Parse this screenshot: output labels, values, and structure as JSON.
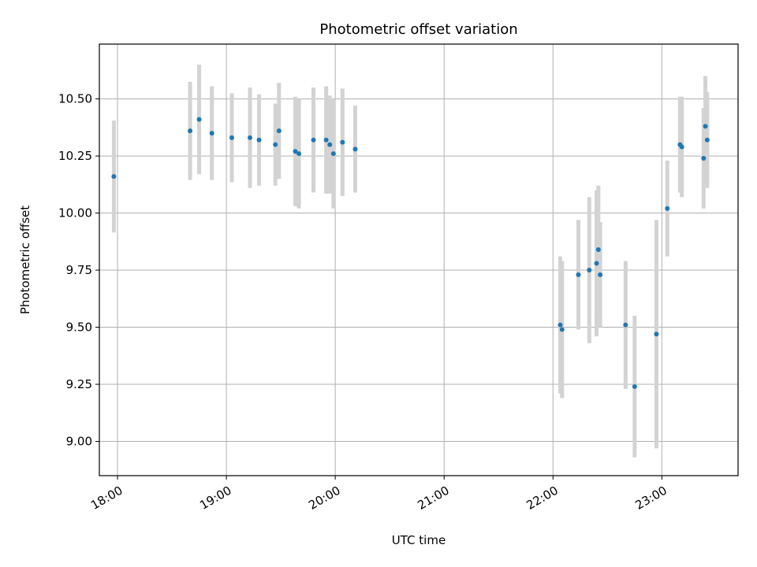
{
  "chart_data": {
    "type": "scatter",
    "title": "Photometric offset variation",
    "xlabel": "UTC time",
    "ylabel": "Photometric offset",
    "x_ticks": [
      "18:00",
      "19:00",
      "20:00",
      "21:00",
      "22:00",
      "23:00"
    ],
    "y_ticks": [
      "9.00",
      "9.25",
      "9.50",
      "9.75",
      "10.00",
      "10.25",
      "10.50"
    ],
    "xlim": [
      "17:50",
      "23:42"
    ],
    "ylim": [
      8.85,
      10.74
    ],
    "grid": true,
    "colors": {
      "points": "#1f77b4",
      "errorbars": "#d3d3d3",
      "grid": "#b0b0b0"
    },
    "series": [
      {
        "points": [
          {
            "x": "17:58",
            "y": 10.16,
            "err": 0.245
          },
          {
            "x": "18:40",
            "y": 10.36,
            "err": 0.215
          },
          {
            "x": "18:45",
            "y": 10.41,
            "err": 0.24
          },
          {
            "x": "18:52",
            "y": 10.35,
            "err": 0.205
          },
          {
            "x": "19:03",
            "y": 10.33,
            "err": 0.195
          },
          {
            "x": "19:13",
            "y": 10.33,
            "err": 0.22
          },
          {
            "x": "19:18",
            "y": 10.32,
            "err": 0.2
          },
          {
            "x": "19:27",
            "y": 10.3,
            "err": 0.18
          },
          {
            "x": "19:29",
            "y": 10.36,
            "err": 0.21
          },
          {
            "x": "19:38",
            "y": 10.27,
            "err": 0.24
          },
          {
            "x": "19:40",
            "y": 10.26,
            "err": 0.24
          },
          {
            "x": "19:48",
            "y": 10.32,
            "err": 0.23
          },
          {
            "x": "19:55",
            "y": 10.32,
            "err": 0.235
          },
          {
            "x": "19:57",
            "y": 10.3,
            "err": 0.215
          },
          {
            "x": "19:59",
            "y": 10.26,
            "err": 0.24
          },
          {
            "x": "20:04",
            "y": 10.31,
            "err": 0.235
          },
          {
            "x": "20:11",
            "y": 10.28,
            "err": 0.19
          },
          {
            "x": "22:04",
            "y": 9.51,
            "err": 0.3
          },
          {
            "x": "22:05",
            "y": 9.49,
            "err": 0.3
          },
          {
            "x": "22:14",
            "y": 9.73,
            "err": 0.24
          },
          {
            "x": "22:20",
            "y": 9.75,
            "err": 0.32
          },
          {
            "x": "22:24",
            "y": 9.78,
            "err": 0.32
          },
          {
            "x": "22:25",
            "y": 9.84,
            "err": 0.28
          },
          {
            "x": "22:26",
            "y": 9.73,
            "err": 0.23
          },
          {
            "x": "22:40",
            "y": 9.51,
            "err": 0.28
          },
          {
            "x": "22:45",
            "y": 9.24,
            "err": 0.31
          },
          {
            "x": "22:57",
            "y": 9.47,
            "err": 0.5
          },
          {
            "x": "23:03",
            "y": 10.02,
            "err": 0.21
          },
          {
            "x": "23:10",
            "y": 10.3,
            "err": 0.21
          },
          {
            "x": "23:11",
            "y": 10.29,
            "err": 0.22
          },
          {
            "x": "23:23",
            "y": 10.24,
            "err": 0.22
          },
          {
            "x": "23:24",
            "y": 10.38,
            "err": 0.22
          },
          {
            "x": "23:25",
            "y": 10.32,
            "err": 0.21
          }
        ]
      }
    ]
  }
}
